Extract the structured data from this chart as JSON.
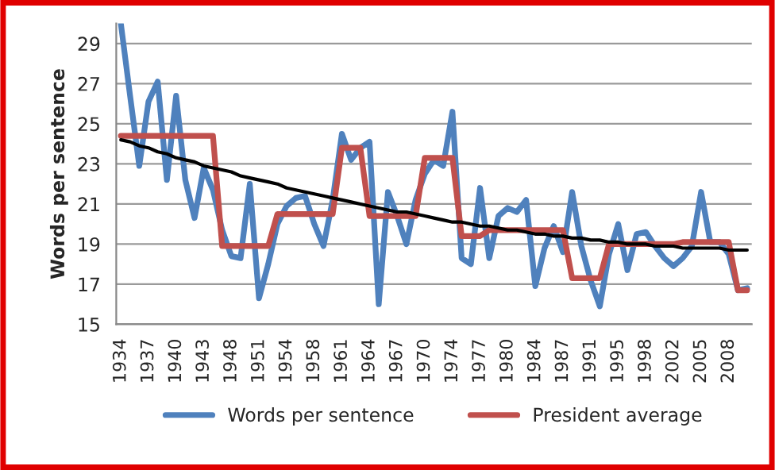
{
  "chart_data": {
    "type": "line",
    "ylabel": "Words per sentence",
    "categories": [
      "1934",
      null,
      null,
      "1937",
      null,
      null,
      "1940",
      null,
      null,
      "1943",
      null,
      null,
      "1948",
      null,
      null,
      "1951",
      null,
      null,
      "1954",
      null,
      null,
      "1958",
      null,
      null,
      "1961",
      null,
      null,
      "1964",
      null,
      null,
      "1967",
      null,
      null,
      "1970",
      null,
      null,
      "1974",
      null,
      null,
      "1977",
      null,
      null,
      "1980",
      null,
      null,
      "1984",
      null,
      null,
      "1987",
      null,
      null,
      "1991",
      null,
      null,
      "1995",
      null,
      null,
      "1998",
      null,
      null,
      "2002",
      null,
      null,
      "2005",
      null,
      null,
      "2008",
      null,
      null
    ],
    "series": [
      {
        "name": "Words per sentence",
        "color": "#4f81bd",
        "values": [
          30.0,
          26.4,
          22.9,
          26.1,
          27.1,
          22.2,
          26.4,
          22.2,
          20.3,
          22.8,
          21.7,
          19.7,
          18.4,
          18.3,
          22.0,
          16.3,
          18.0,
          20.0,
          20.9,
          21.3,
          21.4,
          20.0,
          18.9,
          21.2,
          24.5,
          23.2,
          23.8,
          24.1,
          16.0,
          21.6,
          20.4,
          19.0,
          21.2,
          22.5,
          23.2,
          22.9,
          25.6,
          18.3,
          18.0,
          21.8,
          18.3,
          20.4,
          20.8,
          20.6,
          21.2,
          16.9,
          18.8,
          19.9,
          18.6,
          21.6,
          18.9,
          17.2,
          15.9,
          18.5,
          20.0,
          17.7,
          19.5,
          19.6,
          18.9,
          18.3,
          17.9,
          18.3,
          18.9,
          21.6,
          19.1,
          19.1,
          18.5,
          16.7,
          16.8
        ]
      },
      {
        "name": "President average",
        "color": "#c0504d",
        "values": [
          24.4,
          24.4,
          24.4,
          24.4,
          24.4,
          24.4,
          24.4,
          24.4,
          24.4,
          24.4,
          24.4,
          18.9,
          18.9,
          18.9,
          18.9,
          18.9,
          18.9,
          20.5,
          20.5,
          20.5,
          20.5,
          20.5,
          20.5,
          20.5,
          23.8,
          23.8,
          23.8,
          20.4,
          20.4,
          20.4,
          20.4,
          20.4,
          20.4,
          23.3,
          23.3,
          23.3,
          23.3,
          19.4,
          19.4,
          19.4,
          19.7,
          19.7,
          19.7,
          19.7,
          19.7,
          19.7,
          19.7,
          19.7,
          19.7,
          17.3,
          17.3,
          17.3,
          17.3,
          19.0,
          19.0,
          19.0,
          19.0,
          19.0,
          19.0,
          19.0,
          19.0,
          19.1,
          19.1,
          19.1,
          19.1,
          19.1,
          19.1,
          16.7,
          16.7
        ]
      },
      {
        "color": "#000000",
        "values": [
          24.2,
          24.1,
          23.9,
          23.8,
          23.6,
          23.5,
          23.3,
          23.2,
          23.1,
          22.9,
          22.8,
          22.7,
          22.6,
          22.4,
          22.3,
          22.2,
          22.1,
          22.0,
          21.8,
          21.7,
          21.6,
          21.5,
          21.4,
          21.3,
          21.2,
          21.1,
          21.0,
          20.9,
          20.8,
          20.7,
          20.6,
          20.6,
          20.5,
          20.4,
          20.3,
          20.2,
          20.1,
          20.1,
          20.0,
          19.9,
          19.9,
          19.8,
          19.7,
          19.7,
          19.6,
          19.5,
          19.5,
          19.4,
          19.4,
          19.3,
          19.3,
          19.2,
          19.2,
          19.1,
          19.1,
          19.0,
          19.0,
          19.0,
          18.9,
          18.9,
          18.9,
          18.8,
          18.8,
          18.8,
          18.8,
          18.8,
          18.7,
          18.7,
          18.7
        ]
      }
    ],
    "ylim": [
      15,
      30
    ],
    "yticks": [
      15,
      17,
      19,
      21,
      23,
      25,
      27,
      29
    ],
    "grid": "y",
    "legend": "bottom",
    "marker": "none",
    "line_style": "solid"
  }
}
